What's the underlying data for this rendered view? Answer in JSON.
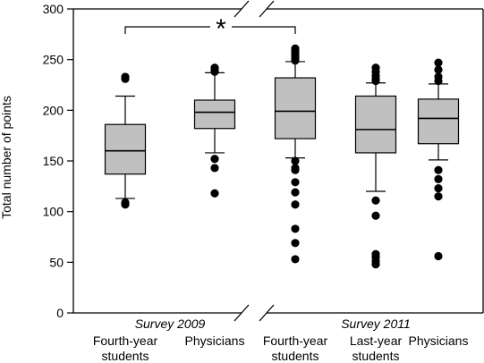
{
  "chart_data": {
    "type": "box",
    "ylabel": "Total number of points",
    "ylim": [
      0,
      300
    ],
    "yticks": [
      0,
      50,
      100,
      150,
      200,
      250,
      300
    ],
    "significance_marker": "*",
    "significance_between": [
      0,
      2
    ],
    "axis_break": "between groups",
    "groups": [
      {
        "label": "Survey 2009",
        "box_indices": [
          0,
          1
        ]
      },
      {
        "label": "Survey 2011",
        "box_indices": [
          2,
          3,
          4
        ]
      }
    ],
    "boxes": [
      {
        "label_lines": [
          "Fourth-year",
          "students"
        ],
        "whisker_low": 113,
        "q1": 137,
        "median": 160,
        "q3": 186,
        "whisker_high": 214,
        "outliers": [
          107,
          109,
          231,
          233
        ]
      },
      {
        "label_lines": [
          "Physicians"
        ],
        "whisker_low": 158,
        "q1": 182,
        "median": 198,
        "q3": 210,
        "whisker_high": 237,
        "outliers": [
          118,
          143,
          152,
          238,
          240,
          242
        ]
      },
      {
        "label_lines": [
          "Fourth-year",
          "students"
        ],
        "whisker_low": 153,
        "q1": 172,
        "median": 199,
        "q3": 232,
        "whisker_high": 248,
        "outliers": [
          53,
          69,
          83,
          107,
          119,
          129,
          141,
          143,
          150,
          249,
          251,
          253,
          255,
          257,
          259,
          261
        ]
      },
      {
        "label_lines": [
          "Last-year",
          "students"
        ],
        "whisker_low": 120,
        "q1": 158,
        "median": 181,
        "q3": 214,
        "whisker_high": 227,
        "outliers": [
          48,
          51,
          55,
          58,
          96,
          111,
          229,
          231,
          234,
          238,
          242
        ]
      },
      {
        "label_lines": [
          "Physicians"
        ],
        "whisker_low": 151,
        "q1": 167,
        "median": 192,
        "q3": 211,
        "whisker_high": 226,
        "outliers": [
          56,
          115,
          123,
          132,
          141,
          229,
          233,
          240,
          247
        ]
      }
    ],
    "box_color": "#c0c0c0",
    "grid": false
  }
}
